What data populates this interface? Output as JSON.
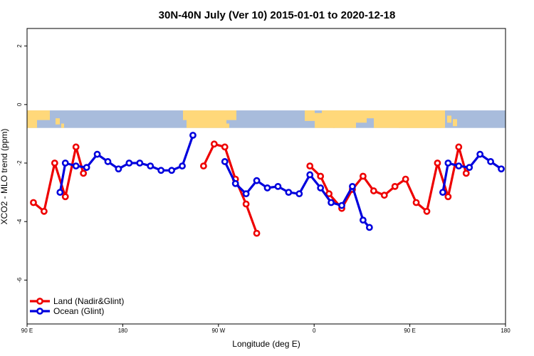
{
  "chart_data": {
    "type": "line",
    "title": "30N-40N July (Ver 10)   2015-01-01 to 2020-12-18",
    "xlabel": "Longitude (deg E)",
    "ylabel": "XCO2 - MLO trend (ppm)",
    "xlim": [
      90,
      540
    ],
    "ylim": [
      -7.5,
      2.6
    ],
    "x_ticks": [
      {
        "value": 90,
        "label": "90 E"
      },
      {
        "value": 180,
        "label": "180"
      },
      {
        "value": 270,
        "label": "90 W"
      },
      {
        "value": 360,
        "label": "0"
      },
      {
        "value": 450,
        "label": "90 E"
      },
      {
        "value": 540,
        "label": "180"
      }
    ],
    "y_ticks": [
      {
        "value": 2,
        "label": "2"
      },
      {
        "value": 0,
        "label": "0"
      },
      {
        "value": -2,
        "label": "-2"
      },
      {
        "value": -4,
        "label": "-4"
      },
      {
        "value": -6,
        "label": "-6"
      }
    ],
    "legend_position": "bottom-left",
    "map_band": {
      "y_top": -0.2,
      "y_bottom": -0.8,
      "ocean_color": "#A8BCDC",
      "land_color": "#FFD87A"
    },
    "series": [
      {
        "name": "Land (Nadir&Glint)",
        "color": "#EE0000",
        "segments": [
          [
            [
              96,
              -3.35
            ],
            [
              106,
              -3.65
            ],
            [
              116,
              -2.0
            ],
            [
              126,
              -3.15
            ],
            [
              136,
              -1.45
            ],
            [
              143,
              -2.35
            ]
          ],
          [
            [
              256,
              -2.1
            ],
            [
              266,
              -1.35
            ],
            [
              276,
              -1.45
            ],
            [
              286,
              -2.55
            ],
            [
              296,
              -3.4
            ],
            [
              306,
              -4.4
            ]
          ],
          [
            [
              356,
              -2.1
            ],
            [
              366,
              -2.45
            ],
            [
              374,
              -3.05
            ],
            [
              386,
              -3.55
            ],
            [
              396,
              -2.9
            ],
            [
              406,
              -2.45
            ],
            [
              416,
              -2.95
            ],
            [
              426,
              -3.1
            ],
            [
              436,
              -2.8
            ],
            [
              446,
              -2.55
            ],
            [
              456,
              -3.35
            ],
            [
              466,
              -3.65
            ],
            [
              476,
              -2.0
            ],
            [
              486,
              -3.15
            ],
            [
              496,
              -1.45
            ],
            [
              503,
              -2.35
            ]
          ]
        ]
      },
      {
        "name": "Ocean (Glint)",
        "color": "#0000DD",
        "segments": [
          [
            [
              121,
              -3.0
            ],
            [
              126,
              -2.0
            ],
            [
              136,
              -2.1
            ],
            [
              146,
              -2.15
            ],
            [
              156,
              -1.7
            ],
            [
              166,
              -1.95
            ],
            [
              176,
              -2.2
            ],
            [
              186,
              -2.0
            ],
            [
              196,
              -2.0
            ],
            [
              206,
              -2.1
            ],
            [
              216,
              -2.25
            ],
            [
              226,
              -2.25
            ],
            [
              236,
              -2.1
            ],
            [
              246,
              -1.05
            ]
          ],
          [
            [
              276,
              -1.95
            ],
            [
              286,
              -2.7
            ],
            [
              296,
              -3.05
            ],
            [
              306,
              -2.6
            ],
            [
              316,
              -2.85
            ],
            [
              326,
              -2.8
            ],
            [
              336,
              -3.0
            ],
            [
              346,
              -3.05
            ],
            [
              356,
              -2.4
            ],
            [
              366,
              -2.85
            ],
            [
              376,
              -3.35
            ],
            [
              386,
              -3.45
            ],
            [
              396,
              -2.8
            ],
            [
              406,
              -3.95
            ],
            [
              412,
              -4.2
            ]
          ],
          [
            [
              481,
              -3.0
            ],
            [
              486,
              -2.0
            ],
            [
              496,
              -2.1
            ],
            [
              506,
              -2.15
            ],
            [
              516,
              -1.7
            ],
            [
              526,
              -1.95
            ],
            [
              536,
              -2.2
            ]
          ]
        ]
      }
    ]
  }
}
